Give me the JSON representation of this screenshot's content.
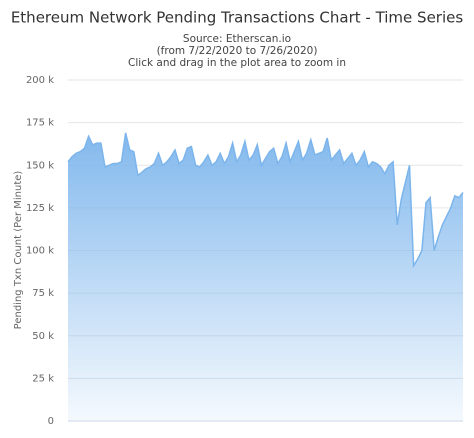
{
  "chart_data": {
    "type": "area",
    "title": "Ethereum Network Pending Transactions Chart - Time Series",
    "subtitle": [
      "Source: Etherscan.io",
      "(from 7/22/2020 to 7/26/2020)",
      "Click and drag in the plot area to zoom in"
    ],
    "y_label": "Pending Txn Count (Per Minute)",
    "color": "#7cb5ec",
    "grid": true,
    "ylim": [
      0,
      200000
    ],
    "yticks": [
      {
        "value": 0,
        "label": "0"
      },
      {
        "value": 25000,
        "label": "25 k"
      },
      {
        "value": 50000,
        "label": "50 k"
      },
      {
        "value": 75000,
        "label": "75 k"
      },
      {
        "value": 100000,
        "label": "100 k"
      },
      {
        "value": 125000,
        "label": "125 k"
      },
      {
        "value": 150000,
        "label": "150 k"
      },
      {
        "value": 175000,
        "label": "175 k"
      },
      {
        "value": 200000,
        "label": "200 k"
      }
    ],
    "values": [
      152000,
      155000,
      157000,
      158000,
      160000,
      167000,
      162000,
      163000,
      163000,
      149000,
      150000,
      151000,
      151000,
      152000,
      169000,
      159000,
      158000,
      144000,
      146000,
      148000,
      149000,
      151000,
      157000,
      150000,
      152000,
      155000,
      159000,
      151000,
      153000,
      160000,
      161000,
      150000,
      149000,
      152000,
      156000,
      150000,
      152000,
      157000,
      151000,
      155000,
      163000,
      152000,
      156000,
      164000,
      153000,
      156000,
      162000,
      150000,
      154000,
      158000,
      160000,
      151000,
      155000,
      163000,
      152000,
      158000,
      164000,
      153000,
      157000,
      165000,
      156000,
      157000,
      158000,
      166000,
      153000,
      156000,
      159000,
      151000,
      154000,
      157000,
      150000,
      153000,
      158000,
      149000,
      152000,
      151000,
      149000,
      145000,
      150000,
      152000,
      115000,
      130000,
      140000,
      150000,
      91000,
      95000,
      100000,
      128000,
      131000,
      100000,
      108000,
      115000,
      120000,
      125000,
      132000,
      131000,
      134000
    ]
  }
}
